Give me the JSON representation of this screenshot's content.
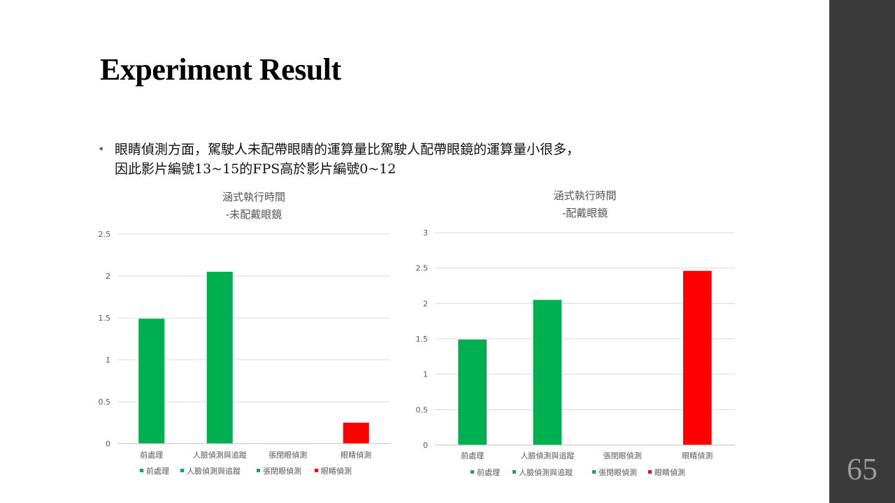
{
  "slide": {
    "title": "Experiment Result",
    "page_number": "65",
    "bullet_line1": "眼睛偵測方面，駕駛人未配帶眼睛的運算量比駕駛人配帶眼鏡的運算量小很多，",
    "bullet_line2": "因此影片編號13~15的FPS高於影片編號0~12",
    "bullet_symbol": "•"
  },
  "chart_data": [
    {
      "type": "bar",
      "title_lines": [
        "涵式執行時間",
        "-未配戴眼鏡"
      ],
      "categories": [
        "前處理",
        "人臉偵測與追蹤",
        "張閉眼偵測",
        "眼睛偵測"
      ],
      "values": [
        1.49,
        2.05,
        0,
        0.25
      ],
      "colors": [
        "#00b050",
        "#00b050",
        "#00b050",
        "#ff0000"
      ],
      "legend": [
        "前處理",
        "人臉偵測與追蹤",
        "張閉眼偵測",
        "眼睛偵測"
      ],
      "ylim": [
        0,
        2.5
      ],
      "yticks": [
        0,
        0.5,
        1,
        1.5,
        2,
        2.5
      ],
      "ytick_labels": [
        "0",
        "0.5",
        "1",
        "1.5",
        "2",
        "2.5"
      ],
      "grid": true,
      "legend_position": "bottom"
    },
    {
      "type": "bar",
      "title_lines": [
        "涵式執行時間",
        "-配戴眼鏡"
      ],
      "categories": [
        "前處理",
        "人臉偵測與追蹤",
        "張閉眼偵測",
        "眼睛偵測"
      ],
      "values": [
        1.49,
        2.05,
        0,
        2.46
      ],
      "colors": [
        "#00b050",
        "#00b050",
        "#00b050",
        "#ff0000"
      ],
      "legend": [
        "前處理",
        "人臉偵測與追蹤",
        "張閉眼偵測",
        "眼睛偵測"
      ],
      "ylim": [
        0,
        3
      ],
      "yticks": [
        0,
        0.5,
        1,
        1.5,
        2,
        2.5,
        3
      ],
      "ytick_labels": [
        "0",
        "0.5",
        "1",
        "1.5",
        "2",
        "2.5",
        "3"
      ],
      "grid": true,
      "legend_position": "bottom"
    }
  ]
}
